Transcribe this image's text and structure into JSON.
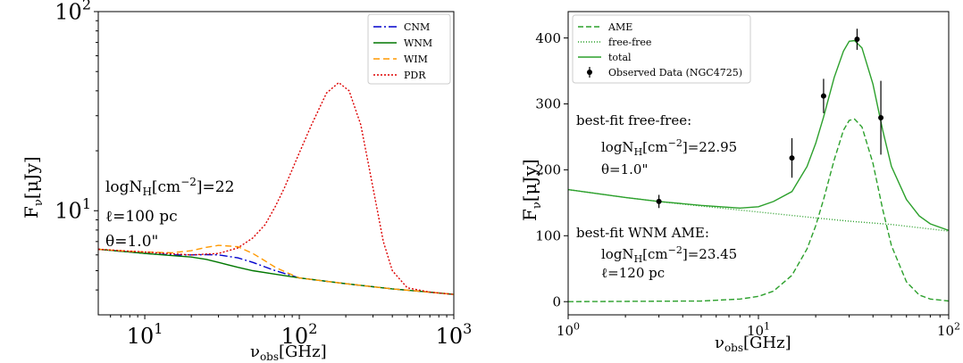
{
  "chart_data": [
    {
      "type": "line",
      "xlabel_main": "ν",
      "xlabel_sub": "obs",
      "xlabel_unit": "[GHz]",
      "ylabel_main": "F",
      "ylabel_sub": "ν",
      "ylabel_unit": "[μJy]",
      "x_scale": "log",
      "y_scale": "log",
      "xlim": [
        5,
        1000
      ],
      "ylim": [
        3,
        100
      ],
      "x_ticks": [
        {
          "value": 10,
          "base": "10",
          "exp": "1"
        },
        {
          "value": 100,
          "base": "10",
          "exp": "2"
        },
        {
          "value": 1000,
          "base": "10",
          "exp": "3"
        }
      ],
      "y_ticks": [
        {
          "value": 10,
          "base": "10",
          "exp": "1"
        },
        {
          "value": 100,
          "base": "10",
          "exp": "2"
        }
      ],
      "legend_position": "top-right",
      "annotations": [
        {
          "line1": "logN",
          "line1_sub": "H",
          "line1_rest": "[cm",
          "line1_sup": "−2",
          "line1_end": "]=22"
        },
        {
          "text": "ℓ=100 pc"
        },
        {
          "text": "θ=1.0\""
        }
      ],
      "series": [
        {
          "name": "CNM",
          "color": "#0000cc",
          "dash": "9,3,2,3",
          "x": [
            5,
            8,
            10,
            15,
            20,
            25,
            30,
            40,
            50,
            70,
            100,
            200,
            400,
            700,
            1000
          ],
          "y": [
            6.4,
            6.2,
            6.1,
            6.0,
            6.0,
            6.02,
            6.0,
            5.8,
            5.5,
            5.0,
            4.6,
            4.3,
            4.05,
            3.9,
            3.8
          ]
        },
        {
          "name": "WNM",
          "color": "#007700",
          "dash": "",
          "x": [
            5,
            8,
            10,
            15,
            20,
            25,
            30,
            40,
            50,
            70,
            100,
            200,
            400,
            700,
            1000
          ],
          "y": [
            6.4,
            6.2,
            6.1,
            5.95,
            5.85,
            5.7,
            5.5,
            5.2,
            5.0,
            4.8,
            4.6,
            4.3,
            4.05,
            3.9,
            3.8
          ]
        },
        {
          "name": "WIM",
          "color": "#ff9900",
          "dash": "7,4",
          "x": [
            5,
            8,
            10,
            15,
            20,
            25,
            30,
            40,
            50,
            60,
            70,
            85,
            100,
            200,
            400,
            700,
            1000
          ],
          "y": [
            6.4,
            6.25,
            6.2,
            6.15,
            6.3,
            6.55,
            6.7,
            6.6,
            6.1,
            5.6,
            5.2,
            4.85,
            4.6,
            4.3,
            4.05,
            3.9,
            3.8
          ]
        },
        {
          "name": "PDR",
          "color": "#dd0000",
          "dash": "2,2",
          "x": [
            5,
            10,
            20,
            30,
            40,
            50,
            60,
            70,
            80,
            100,
            120,
            150,
            180,
            210,
            250,
            300,
            350,
            400,
            500,
            700,
            1000
          ],
          "y": [
            6.4,
            6.2,
            6.0,
            6.1,
            6.5,
            7.3,
            8.5,
            10.5,
            13,
            19.5,
            27,
            39,
            44,
            40,
            27,
            13,
            7,
            5,
            4.1,
            3.9,
            3.8
          ]
        }
      ]
    },
    {
      "type": "line",
      "xlabel_main": "ν",
      "xlabel_sub": "obs",
      "xlabel_unit": "[GHz]",
      "ylabel_main": "F",
      "ylabel_sub": "ν",
      "ylabel_unit": "[μJy]",
      "x_scale": "log",
      "y_scale": "linear",
      "xlim": [
        1,
        100
      ],
      "ylim": [
        -20,
        440
      ],
      "x_ticks": [
        {
          "value": 1,
          "base": "10",
          "exp": "0"
        },
        {
          "value": 10,
          "base": "10",
          "exp": "1"
        },
        {
          "value": 100,
          "base": "10",
          "exp": "2"
        }
      ],
      "y_ticks": [
        0,
        100,
        200,
        300,
        400
      ],
      "legend_position": "top-left",
      "annotations": [
        {
          "text": "best-fit free-free:"
        },
        {
          "line1": "logN",
          "line1_sub": "H",
          "line1_rest": "[cm",
          "line1_sup": "−2",
          "line1_end": "]=22.95"
        },
        {
          "text": "θ=1.0\""
        },
        {
          "text": "best-fit WNM AME:"
        },
        {
          "line1": "logN",
          "line1_sub": "H",
          "line1_rest": "[cm",
          "line1_sup": "−2",
          "line1_end": "]=23.45"
        },
        {
          "text": "ℓ=120 pc"
        }
      ],
      "series": [
        {
          "name": "AME",
          "color": "#2ca02c",
          "dash": "6,3",
          "x": [
            1,
            5,
            8,
            10,
            12,
            15,
            18,
            20,
            22,
            25,
            28,
            30,
            32,
            35,
            40,
            45,
            50,
            60,
            70,
            80,
            100
          ],
          "y": [
            0,
            1,
            4,
            8,
            16,
            40,
            80,
            115,
            155,
            215,
            260,
            275,
            277,
            265,
            210,
            140,
            85,
            30,
            10,
            4,
            1
          ]
        },
        {
          "name": "free-free",
          "color": "#2ca02c",
          "dash": "1,2",
          "x": [
            1,
            2,
            3,
            5,
            10,
            20,
            30,
            50,
            100
          ],
          "y": [
            170,
            158,
            152,
            145,
            136,
            127,
            122,
            117,
            107
          ]
        },
        {
          "name": "total",
          "color": "#2ca02c",
          "dash": "",
          "x": [
            1,
            2,
            3,
            5,
            8,
            10,
            12,
            15,
            18,
            20,
            22,
            25,
            28,
            30,
            32,
            35,
            40,
            45,
            50,
            60,
            70,
            80,
            100
          ],
          "y": [
            170,
            158,
            152,
            146,
            142,
            144,
            152,
            167,
            205,
            240,
            280,
            340,
            380,
            395,
            396,
            385,
            330,
            260,
            205,
            155,
            130,
            118,
            108
          ]
        }
      ],
      "observed": {
        "name": "Observed Data (NGC4725)",
        "color": "#000000",
        "x": [
          3,
          15,
          22,
          33,
          44
        ],
        "y": [
          152,
          218,
          312,
          398,
          279
        ],
        "err": [
          10,
          30,
          26,
          16,
          56
        ]
      }
    }
  ]
}
